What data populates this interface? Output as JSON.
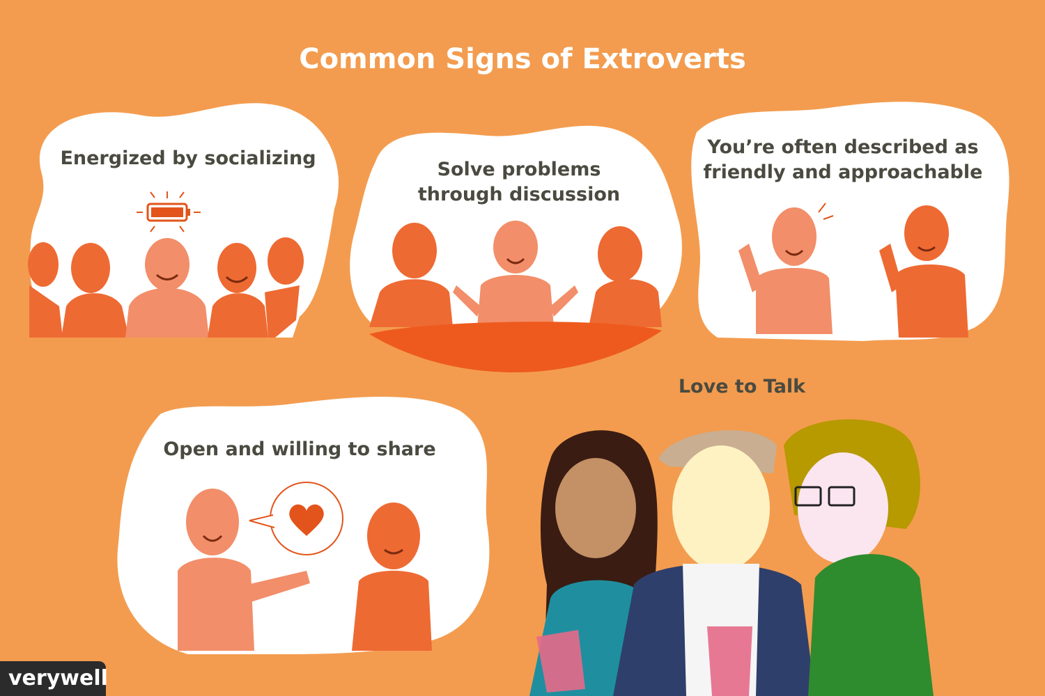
{
  "title": "Common Signs of Extroverts",
  "panels": [
    {
      "caption": "Energized by socializing"
    },
    {
      "caption_line1": "Solve problems",
      "caption_line2": "through discussion"
    },
    {
      "caption_line1": "You’re often described as",
      "caption_line2": "friendly and approachable"
    },
    {
      "caption": "Open and willing to share"
    },
    {
      "caption": "Love to Talk"
    }
  ],
  "brand": "verywell",
  "colors": {
    "background": "#F39C4F",
    "bubble": "#FFFFFF",
    "figure_dark": "#EE6A33",
    "figure_light": "#F28E69",
    "table": "#EE5A1E",
    "title_text": "#FFFFFF",
    "caption_text": "#4A4A40"
  }
}
